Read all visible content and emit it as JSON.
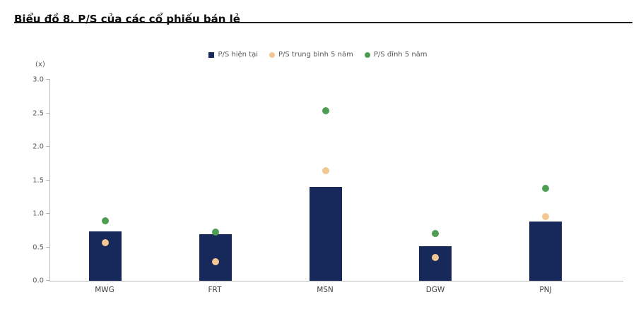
{
  "page": {
    "title": "Biểu đồ 8. P/S của các cổ phiếu bán lẻ"
  },
  "chart_data": {
    "type": "bar",
    "title": "Biểu đồ 8. P/S của các cổ phiếu bán lẻ",
    "unit_label": "(x)",
    "categories": [
      "MWG",
      "FRT",
      "MSN",
      "DGW",
      "PNJ"
    ],
    "series": [
      {
        "name": "P/S hiện tại",
        "marker": "square",
        "color": "#17295a",
        "values": [
          0.74,
          0.7,
          1.4,
          0.52,
          0.88
        ]
      },
      {
        "name": "P/S trung bình 5 năm",
        "marker": "circle",
        "color": "#f2c794",
        "values": [
          0.57,
          0.28,
          1.64,
          0.35,
          0.96
        ]
      },
      {
        "name": "P/S đỉnh 5 năm",
        "marker": "circle",
        "color": "#4f9c53",
        "values": [
          0.89,
          0.73,
          2.54,
          0.71,
          1.38
        ]
      }
    ],
    "ylim": [
      0,
      3.0
    ],
    "yticks": [
      0.0,
      0.5,
      1.0,
      1.5,
      2.0,
      2.5,
      3.0
    ],
    "grid": false,
    "legend_position": "top"
  }
}
